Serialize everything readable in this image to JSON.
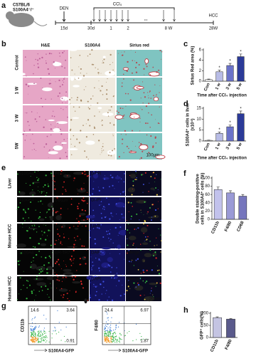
{
  "figure": {
    "a": {
      "label": "a",
      "mouse": [
        "C57BL/6",
        "S100A4⁻/⁻"
      ],
      "den": "DEN",
      "start": "15d",
      "ccl4": "CCl₄",
      "marks": [
        "30d",
        "1",
        "2",
        "8 W"
      ],
      "dots": "...",
      "hcc": "HCC",
      "end": "28W"
    },
    "b": {
      "label": "b",
      "columns": [
        "H&E",
        "S100A4",
        "Sirius red"
      ],
      "rows": [
        "Control",
        "1 W",
        "3 W",
        "5W"
      ],
      "scale_bar": "100μm"
    },
    "e": {
      "label": "e",
      "groups": [
        "Liver",
        "Mouse HCC",
        "Human HCC"
      ],
      "channels": [
        [
          "S100A4",
          "F4/80",
          "DAPI",
          "Merge"
        ],
        [
          "S100A4",
          "CD11b",
          "DAPI",
          "Merge"
        ],
        [
          "S100A4",
          "F4/80",
          "DAPI",
          "Merge"
        ],
        [
          "S100A4",
          "ER-TR7",
          "DAPI",
          "Merge"
        ],
        [
          "S100A4",
          "CD68",
          "DAPI",
          "Merge"
        ]
      ],
      "scale_bar": "20μm"
    },
    "g": {
      "label": "g",
      "plots": [
        {
          "ylabel": "CD11b",
          "xlabel": "S100A4-GFP",
          "quadrants": [
            "14.6",
            "3.64",
            "0.91"
          ]
        },
        {
          "ylabel": "F4/80",
          "xlabel": "S100A4-GFP",
          "quadrants": [
            "24.4",
            "6.97",
            "1.87"
          ]
        }
      ]
    }
  },
  "chart_data": [
    {
      "type": "bar",
      "panel": "c",
      "ylabel": [
        "Sirius Red area (%)"
      ],
      "xlabel": "Time after CCl₄ injection",
      "categories": [
        "Con",
        "1 w",
        "3 w",
        "5 w"
      ],
      "values": [
        0.3,
        1.8,
        3.0,
        4.7
      ],
      "errors": [
        0.1,
        0.3,
        0.4,
        0.5
      ],
      "significance": [
        null,
        "*",
        "*",
        "*"
      ],
      "colors": [
        "#ffffff",
        "#b8bce6",
        "#6b73c9",
        "#2b3a98"
      ],
      "ylim": [
        0,
        6
      ],
      "yticks": [
        0,
        2,
        4,
        6
      ]
    },
    {
      "type": "bar",
      "panel": "d",
      "ylabel": [
        "S100A4⁺ cells in liver",
        "(x10⁴)"
      ],
      "xlabel": "Time after CCl₄ injection",
      "categories": [
        "Con",
        "1 w",
        "3 w",
        "5 w"
      ],
      "values": [
        0.3,
        3.5,
        6.5,
        12.5
      ],
      "errors": [
        0.1,
        0.6,
        0.8,
        1.2
      ],
      "significance": [
        null,
        "*",
        "*",
        "*"
      ],
      "colors": [
        "#ffffff",
        "#b8bce6",
        "#6b73c9",
        "#2b3a98"
      ],
      "ylim": [
        0,
        15
      ],
      "yticks": [
        0,
        5,
        10,
        15
      ]
    },
    {
      "type": "bar",
      "panel": "f",
      "ylabel": [
        "Double staining-positive",
        "cells in S100A4⁺ cells (%)"
      ],
      "categories": [
        "CD11b",
        "F4/80",
        "CD68"
      ],
      "values": [
        72,
        64,
        56
      ],
      "errors": [
        6,
        5,
        4
      ],
      "colors": [
        "#c2c2ec",
        "#9a9ad6",
        "#7676bd"
      ],
      "ylim": [
        0,
        100
      ],
      "yticks": [
        0,
        20,
        40,
        60,
        80,
        100
      ]
    },
    {
      "type": "bar",
      "panel": "h",
      "ylabel": [
        "GFP⁺ cells(%)"
      ],
      "categories": [
        "CD11b",
        "F4/80"
      ],
      "values": [
        82,
        76
      ],
      "errors": [
        3,
        2
      ],
      "colors": [
        "#c4c4e2",
        "#5a5a8c"
      ],
      "ylim": [
        0,
        100
      ],
      "yticks": [
        0,
        50,
        100
      ]
    }
  ]
}
